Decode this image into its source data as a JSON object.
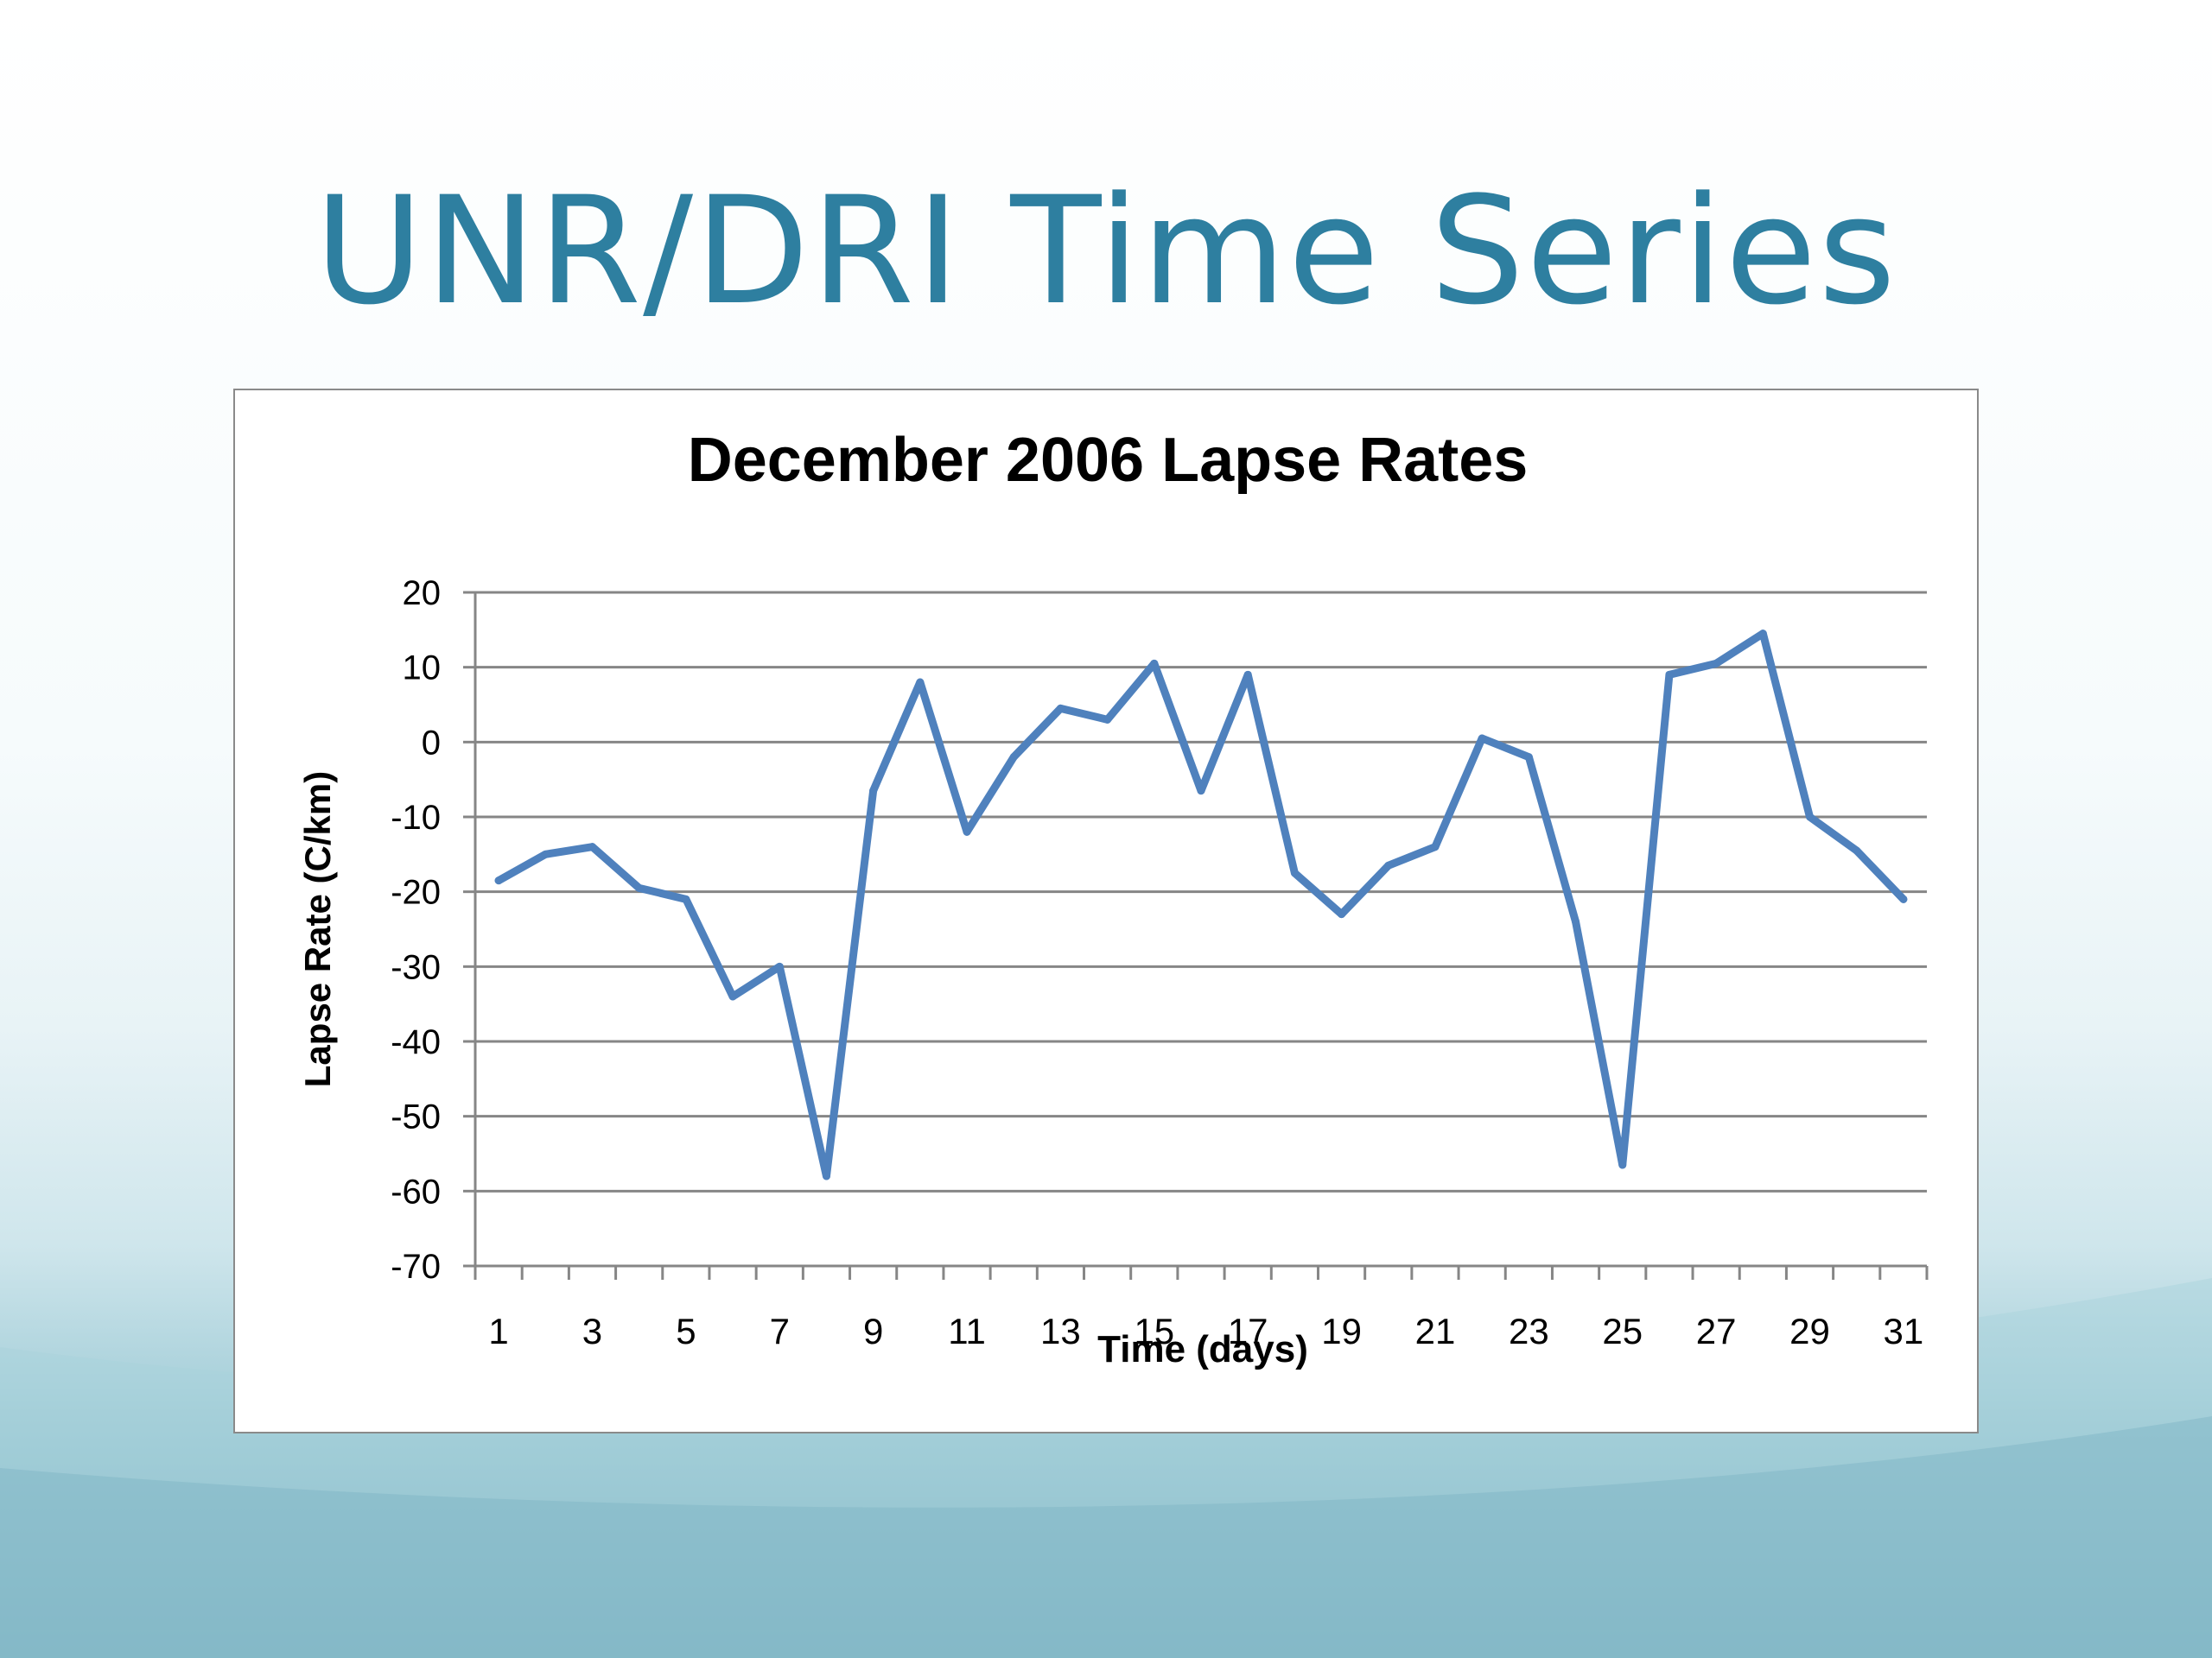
{
  "slide": {
    "title": "UNR/DRI Time Series"
  },
  "colors": {
    "title": "#2e7fa0",
    "series_line": "#4f81bd",
    "grid": "#868686"
  },
  "chart_data": {
    "type": "line",
    "title": "December 2006 Lapse Rates",
    "xlabel": "Time (days)",
    "ylabel": "Lapse Rate  (C/km)",
    "x": [
      1,
      2,
      3,
      4,
      5,
      6,
      7,
      8,
      9,
      10,
      11,
      12,
      13,
      14,
      15,
      16,
      17,
      18,
      19,
      20,
      21,
      22,
      23,
      24,
      25,
      26,
      27,
      28,
      29,
      30,
      31
    ],
    "x_tick_labels": [
      "1",
      "3",
      "5",
      "7",
      "9",
      "11",
      "13",
      "15",
      "17",
      "19",
      "21",
      "23",
      "25",
      "27",
      "29",
      "31"
    ],
    "y_tick_labels": [
      "20",
      "10",
      "0",
      "-10",
      "-20",
      "-30",
      "-40",
      "-50",
      "-60",
      "-70"
    ],
    "ylim": [
      -70,
      20
    ],
    "xlim": [
      1,
      31
    ],
    "grid": "horizontal",
    "legend": "none",
    "series": [
      {
        "values": [
          -18.5,
          -15,
          -14,
          -19.5,
          -21,
          -34,
          -30,
          -58,
          -6.5,
          8,
          -12,
          -2,
          4.5,
          3,
          10.5,
          -6.5,
          9,
          -17.5,
          -23,
          -16.5,
          -14,
          0.5,
          -2,
          -24,
          -56.5,
          9,
          10.5,
          14.5,
          -10,
          -14.5,
          -21
        ]
      }
    ]
  }
}
